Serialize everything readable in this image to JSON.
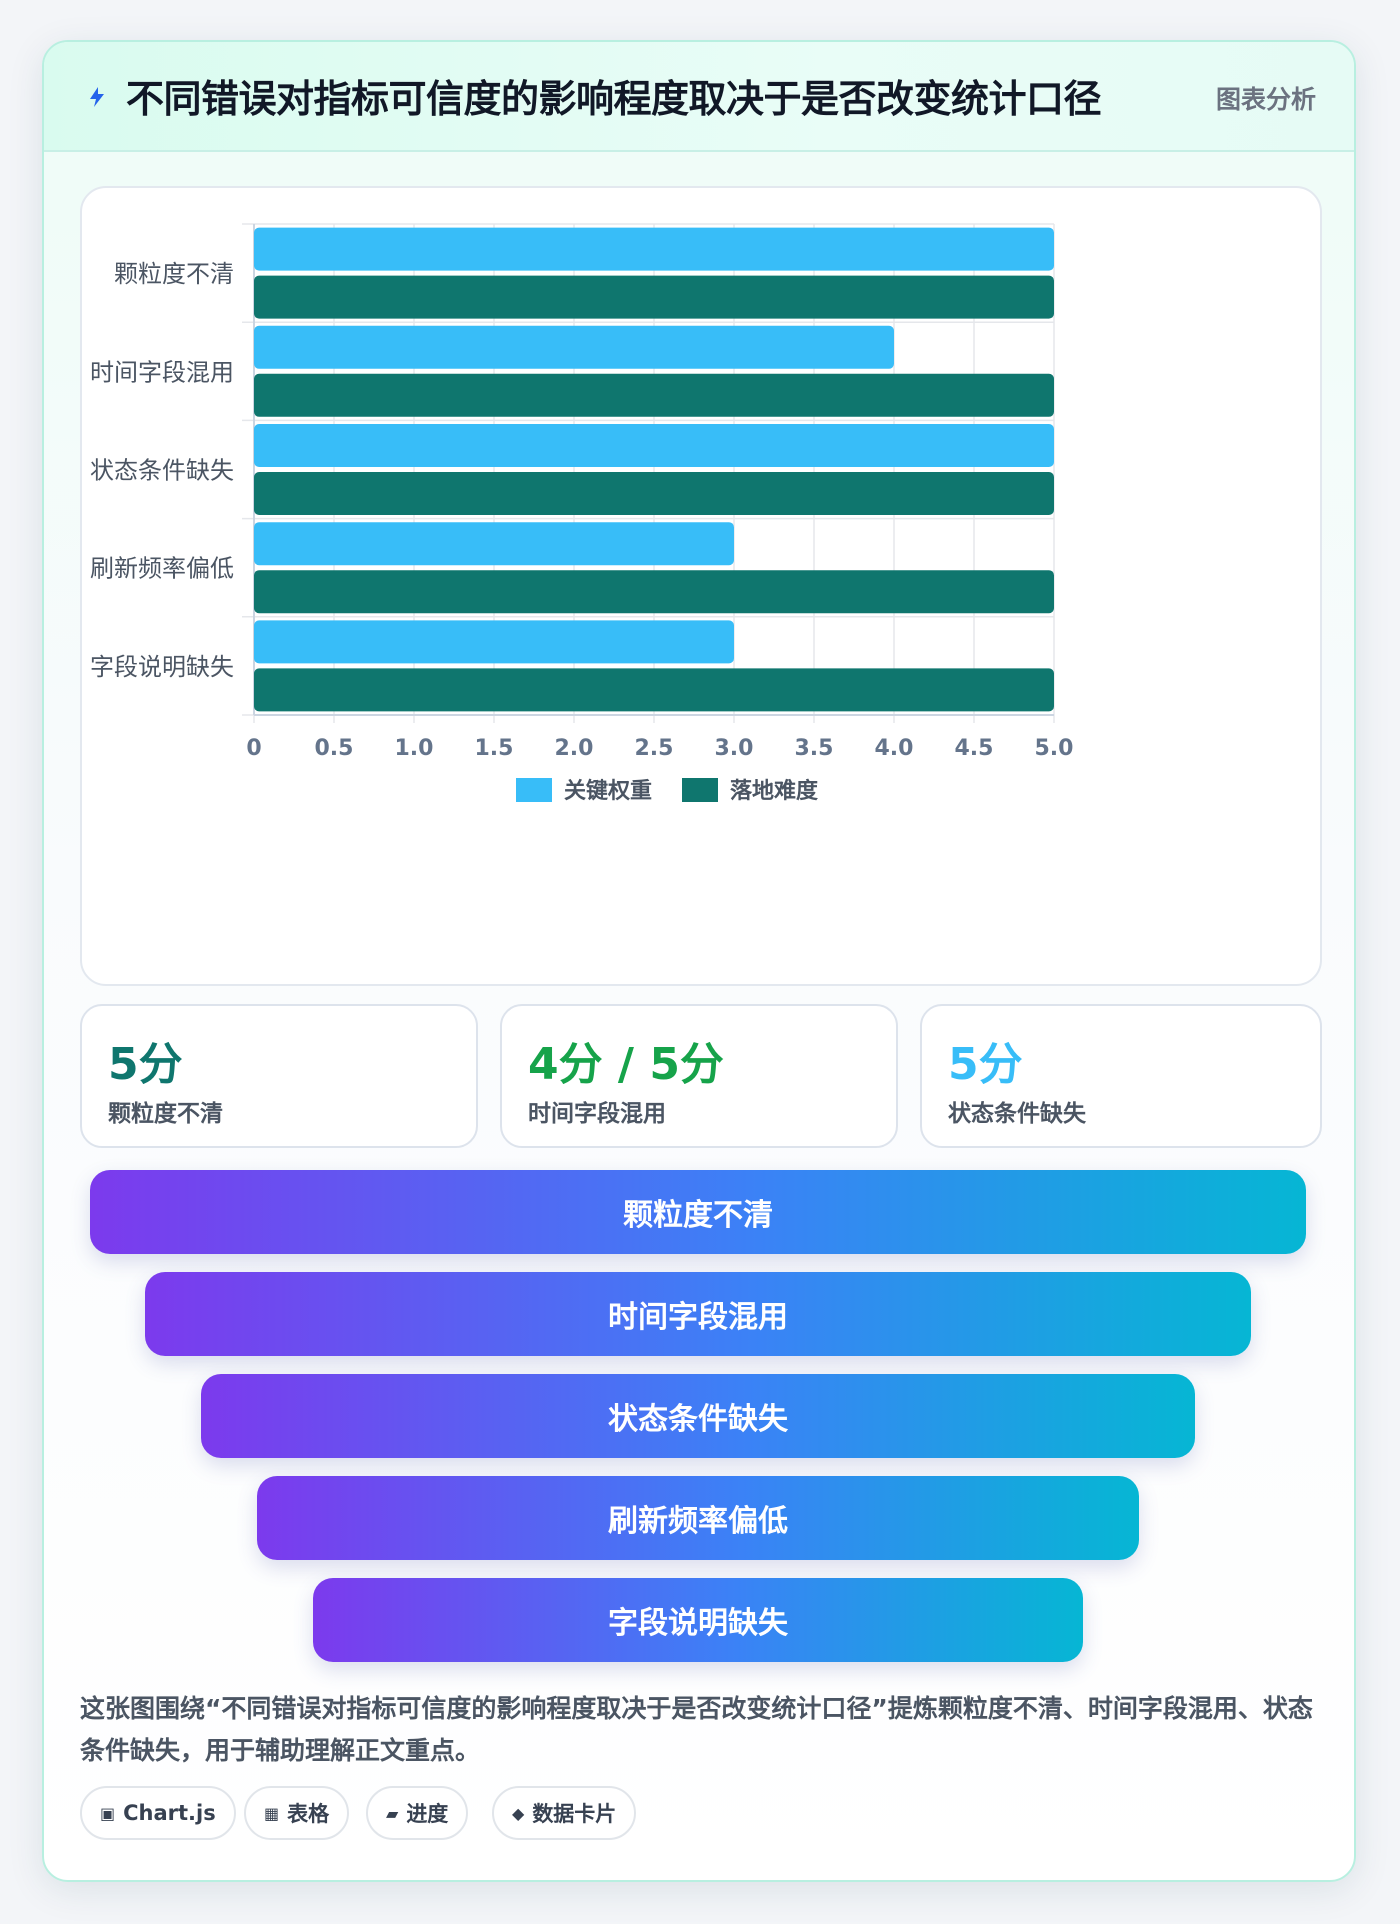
{
  "header": {
    "title": "不同错误对指标可信度的影响程度取决于是否改变统计口径",
    "tag": "图表分析"
  },
  "chart_data": {
    "type": "bar",
    "orientation": "horizontal",
    "categories": [
      "颗粒度不清",
      "时间字段混用",
      "状态条件缺失",
      "刷新频率偏低",
      "字段说明缺失"
    ],
    "series": [
      {
        "name": "关键权重",
        "values": [
          5,
          4,
          5,
          3,
          3
        ],
        "color": "#38bdf8"
      },
      {
        "name": "落地难度",
        "values": [
          5,
          5,
          5,
          5,
          5
        ],
        "color": "#0f766e"
      }
    ],
    "xlim": [
      0,
      5
    ],
    "xticks": [
      "0",
      "0.5",
      "1.0",
      "1.5",
      "2.0",
      "2.5",
      "3.0",
      "3.5",
      "4.0",
      "4.5",
      "5.0"
    ],
    "grid": true,
    "legend_position": "bottom"
  },
  "stats": [
    {
      "value": "5分",
      "label": "颗粒度不清",
      "color": "#0f766e"
    },
    {
      "value": "4分 / 5分",
      "label": "时间字段混用",
      "color": "#16a34a"
    },
    {
      "value": "5分",
      "label": "状态条件缺失",
      "color": "#38bdf8"
    }
  ],
  "funnel": [
    "颗粒度不清",
    "时间字段混用",
    "状态条件缺失",
    "刷新频率偏低",
    "字段说明缺失"
  ],
  "description": "这张图围绕“不同错误对指标可信度的影响程度取决于是否改变统计口径”提炼颗粒度不清、时间字段混用、状态条件缺失，用于辅助理解正文重点。",
  "chips": [
    {
      "icon": "▣",
      "icon_name": "chart-icon",
      "label": "Chart.js"
    },
    {
      "icon": "▦",
      "icon_name": "table-icon",
      "label": "表格"
    },
    {
      "icon": "▰",
      "icon_name": "progress-icon",
      "label": "进度"
    },
    {
      "icon": "◆",
      "icon_name": "data-card-icon",
      "label": "数据卡片"
    }
  ]
}
